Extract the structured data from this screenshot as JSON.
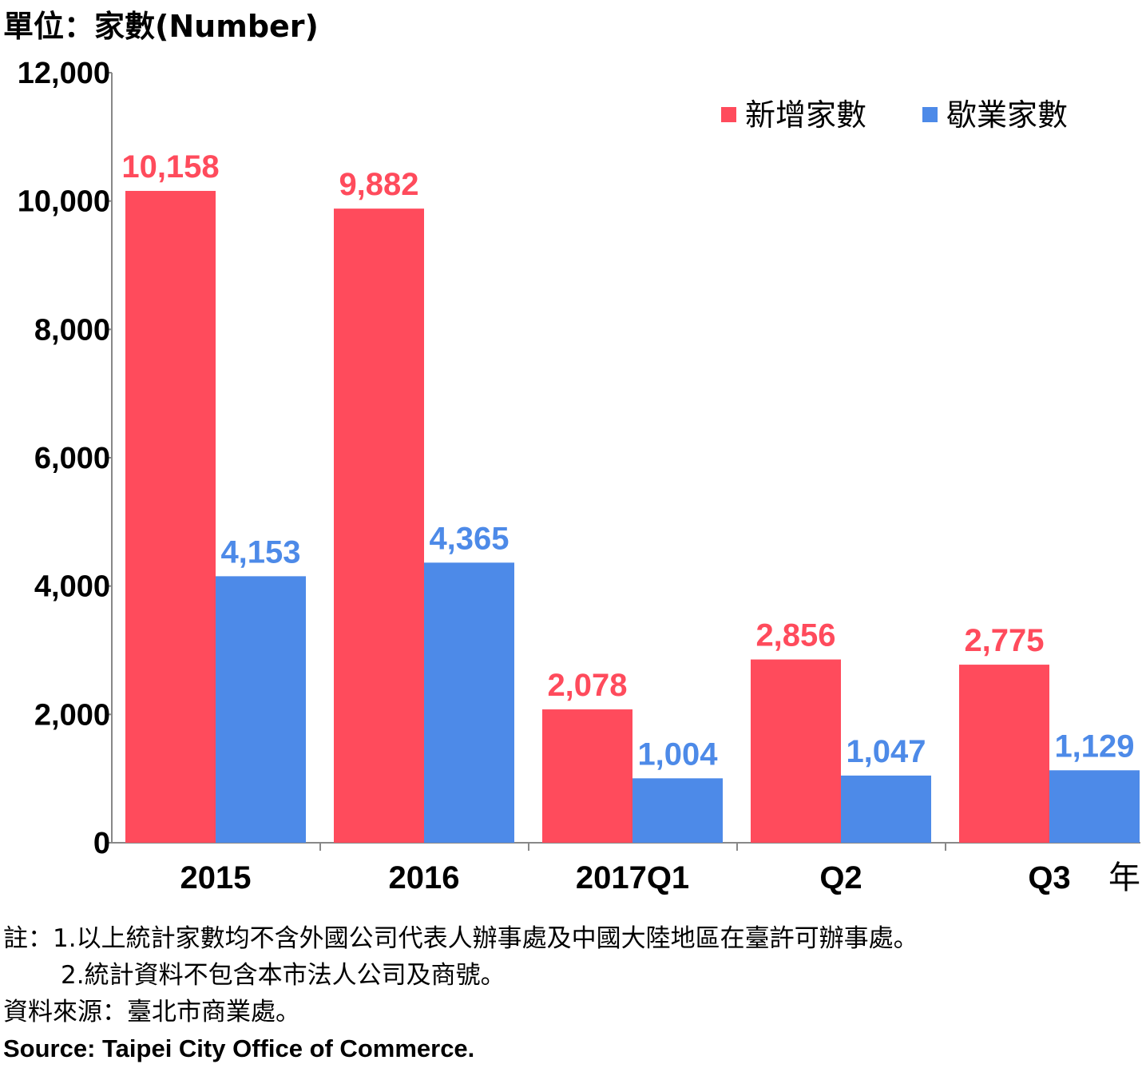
{
  "unit_label": "單位：家數(Number)",
  "chart_data": {
    "type": "bar",
    "categories": [
      "2015",
      "2016",
      "2017Q1",
      "Q2",
      "Q3"
    ],
    "series": [
      {
        "name": "新增家數",
        "color": "#ff4b5c",
        "values": [
          10158,
          9882,
          2078,
          2856,
          2775
        ],
        "labels": [
          "10,158",
          "9,882",
          "2,078",
          "2,856",
          "2,775"
        ]
      },
      {
        "name": "歇業家數",
        "color": "#4d8ae8",
        "values": [
          4153,
          4365,
          1004,
          1047,
          1129
        ],
        "labels": [
          "4,153",
          "4,365",
          "1,004",
          "1,047",
          "1,129"
        ]
      }
    ],
    "ylim": [
      0,
      12000
    ],
    "yticks": [
      0,
      2000,
      4000,
      6000,
      8000,
      10000,
      12000
    ],
    "ytick_labels": [
      "0",
      "2,000",
      "4,000",
      "6,000",
      "8,000",
      "10,000",
      "12,000"
    ],
    "x_unit": "年",
    "legend_position": "top-right",
    "grid": false
  },
  "notes": {
    "note1": "註：1.以上統計家數均不含外國公司代表人辦事處及中國大陸地區在臺許可辦事處。",
    "note2": "2.統計資料不包含本市法人公司及商號。",
    "source_zh": "資料來源：臺北市商業處。",
    "source_en": "Source: Taipei City Office of Commerce."
  }
}
